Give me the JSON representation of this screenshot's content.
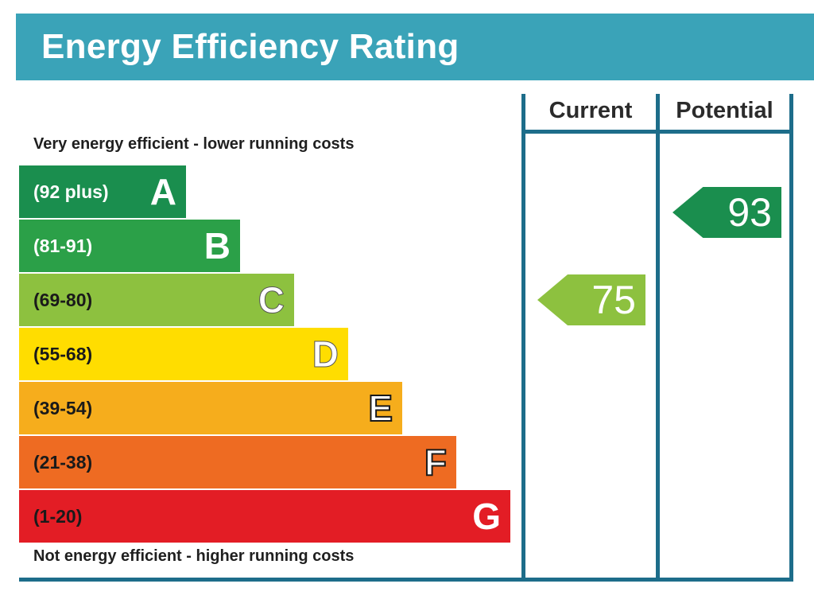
{
  "title": "Energy Efficiency Rating",
  "top_caption": "Very energy efficient - lower running costs",
  "bottom_caption": "Not energy efficient - higher running costs",
  "columns": {
    "current": "Current",
    "potential": "Potential"
  },
  "chart_data": {
    "type": "bar",
    "title": "Energy Efficiency Rating",
    "categories": [
      "A",
      "B",
      "C",
      "D",
      "E",
      "F",
      "G"
    ],
    "bands": [
      {
        "letter": "A",
        "range": "(92 plus)",
        "color": "#1a8e4e",
        "text_color": "#ffffff",
        "outlined": false
      },
      {
        "letter": "B",
        "range": "(81-91)",
        "color": "#2ba048",
        "text_color": "#ffffff",
        "outlined": false
      },
      {
        "letter": "C",
        "range": "(69-80)",
        "color": "#8dc13f",
        "text_color": "#1a1a1a",
        "outlined": false
      },
      {
        "letter": "D",
        "range": "(55-68)",
        "color": "#ffdd00",
        "text_color": "#1a1a1a",
        "outlined": false
      },
      {
        "letter": "E",
        "range": "(39-54)",
        "color": "#f6ad1c",
        "text_color": "#1a1a1a",
        "outlined": true
      },
      {
        "letter": "F",
        "range": "(21-38)",
        "color": "#ee6b22",
        "text_color": "#1a1a1a",
        "outlined": true
      },
      {
        "letter": "G",
        "range": "(1-20)",
        "color": "#e31d25",
        "text_color": "#1a1a1a",
        "outlined": false
      }
    ],
    "current": {
      "value": 75,
      "band": "C",
      "color": "#8dc13f"
    },
    "potential": {
      "value": 93,
      "band": "A",
      "color": "#1a8e4e"
    }
  }
}
